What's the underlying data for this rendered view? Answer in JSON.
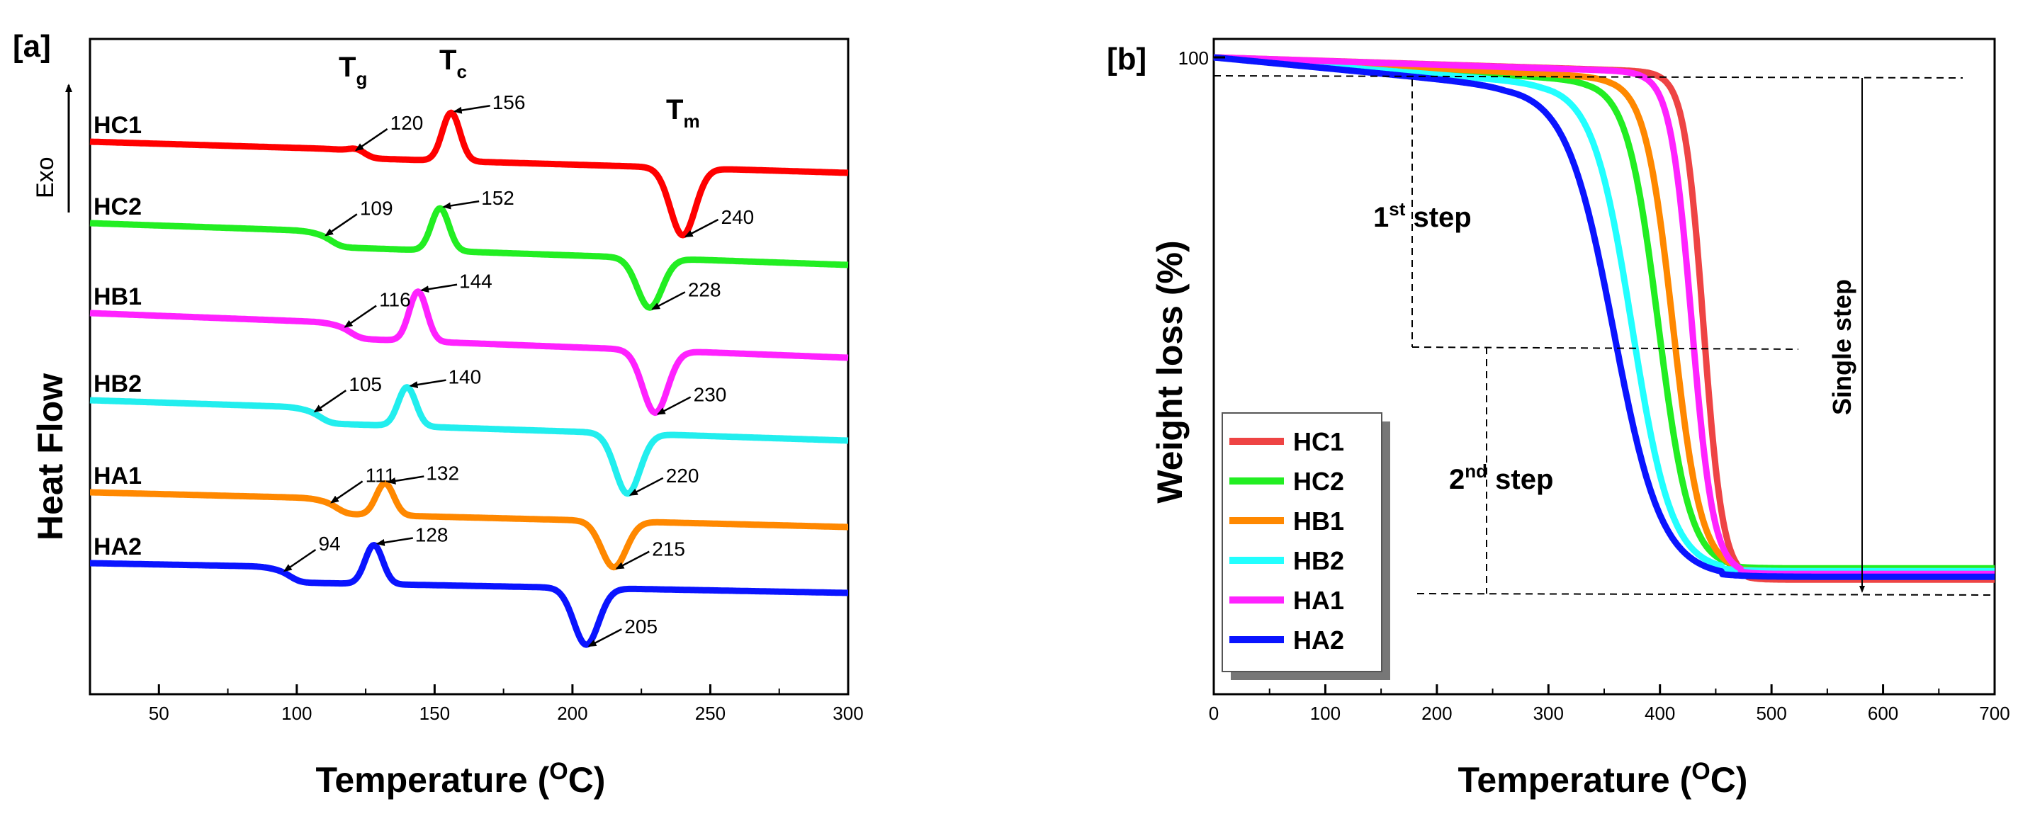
{
  "chart_data": [
    {
      "panel": "[a]",
      "type": "line",
      "xlabel_main": "Temperature (",
      "xlabel_sup": "O",
      "xlabel_end": "C)",
      "ylabel": "Heat Flow",
      "exo_label": "Exo",
      "xlim": [
        25,
        300
      ],
      "xticks": [
        50,
        100,
        150,
        200,
        250,
        300
      ],
      "transition_labels": {
        "tg": {
          "base": "T",
          "sub": "g"
        },
        "tc": {
          "base": "T",
          "sub": "c"
        },
        "tm": {
          "base": "T",
          "sub": "m"
        }
      },
      "series": [
        {
          "name": "HC1",
          "color": "#ff0000",
          "tg": 120,
          "tc": 156,
          "tm": 240
        },
        {
          "name": "HC2",
          "color": "#22ee22",
          "tg": 109,
          "tc": 152,
          "tm": 228
        },
        {
          "name": "HB1",
          "color": "#ff22ff",
          "tg": 116,
          "tc": 144,
          "tm": 230
        },
        {
          "name": "HB2",
          "color": "#22eeee",
          "tg": 105,
          "tc": 140,
          "tm": 220
        },
        {
          "name": "HA1",
          "color": "#ff8800",
          "tg": 111,
          "tc": 132,
          "tm": 215
        },
        {
          "name": "HA2",
          "color": "#0a14ff",
          "tg": 94,
          "tc": 128,
          "tm": 205
        }
      ]
    },
    {
      "panel": "[b]",
      "type": "line",
      "xlabel_main": "Temperature (",
      "xlabel_sup": "O",
      "xlabel_end": "C)",
      "ylabel": "Weight loss (%)",
      "xlim": [
        0,
        700
      ],
      "xticks": [
        0,
        100,
        200,
        300,
        400,
        500,
        600,
        700
      ],
      "ytick_label": "100",
      "ylim": [
        0,
        104
      ],
      "annotations": {
        "step1_base": "1",
        "step1_sup": "st",
        "step1_end": " step",
        "step2_base": "2",
        "step2_sup": "nd",
        "step2_end": " step",
        "single": "Single step"
      },
      "series": [
        {
          "name": "HC1",
          "color": "#ee4444",
          "onset": 400,
          "end": 478,
          "residue": 7.5,
          "plateau": 97.5
        },
        {
          "name": "HC2",
          "color": "#22ee22",
          "onset": 335,
          "end": 462,
          "residue": 9.5,
          "plateau": 96
        },
        {
          "name": "HB1",
          "color": "#ff8800",
          "onset": 355,
          "end": 468,
          "residue": 9.0,
          "plateau": 96.5
        },
        {
          "name": "HB2",
          "color": "#22ffff",
          "onset": 295,
          "end": 455,
          "residue": 9.0,
          "plateau": 95.5
        },
        {
          "name": "HA1",
          "color": "#ff22ff",
          "onset": 385,
          "end": 472,
          "residue": 8.5,
          "plateau": 97.5
        },
        {
          "name": "HA2",
          "color": "#0a14ff",
          "onset": 262,
          "end": 455,
          "residue": 8.0,
          "plateau": 95
        }
      ]
    }
  ]
}
